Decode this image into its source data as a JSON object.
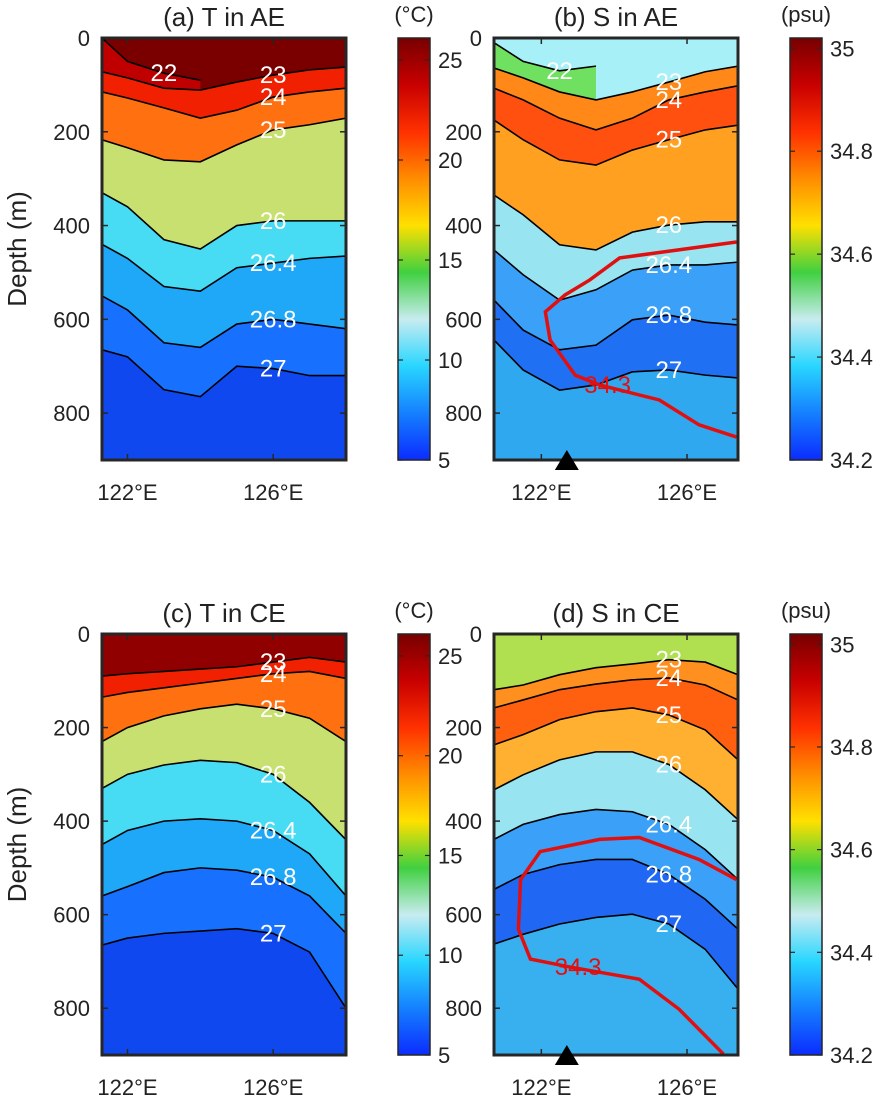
{
  "chart_data": [
    {
      "type": "contour",
      "title": "(a) T in AE",
      "ylabel": "Depth (m)",
      "xlim": [
        121.3,
        128
      ],
      "xticks": [
        {
          "value": 122,
          "label": "122°E"
        },
        {
          "value": 126,
          "label": "126°E"
        }
      ],
      "ylim": [
        0,
        900
      ],
      "yreverse": true,
      "yticks": [
        0,
        200,
        400,
        600,
        800
      ],
      "colorbar": {
        "label": "(°C)",
        "lim": [
          5,
          26.1
        ],
        "ticks": [
          5,
          10,
          15,
          20,
          25
        ],
        "colormap": [
          "#0b2cff",
          "#1580ff",
          "#28d6ff",
          "#c8ecf0",
          "#40d040",
          "#ffe000",
          "#ff8c00",
          "#ff3000",
          "#c80000",
          "#780000"
        ]
      },
      "top_fill": "#7a0000",
      "series": [
        {
          "name": "22",
          "color": "#000000",
          "fill": "#c00000",
          "x": [
            121.3,
            122,
            123,
            124
          ],
          "values": [
            0,
            50,
            75,
            90
          ]
        },
        {
          "name": "23",
          "color": "#000000",
          "fill": "#f02000",
          "x": [
            121.3,
            122,
            123,
            124,
            125,
            126,
            127,
            128
          ],
          "values": [
            72,
            85,
            107,
            111,
            94,
            79,
            68,
            62
          ]
        },
        {
          "name": "24",
          "color": "#000000",
          "fill": "#ff7010",
          "x": [
            121.3,
            122,
            123,
            124,
            125,
            126,
            127,
            128
          ],
          "values": [
            115,
            128,
            149,
            171,
            154,
            126,
            115,
            107
          ]
        },
        {
          "name": "25",
          "color": "#000000",
          "fill": "#c8e070",
          "x": [
            121.3,
            122,
            123,
            124,
            125,
            126,
            127,
            128
          ],
          "values": [
            217,
            234,
            260,
            264,
            228,
            196,
            185,
            171
          ]
        },
        {
          "name": "26",
          "color": "#000000",
          "fill": "#48dcf4",
          "x": [
            121.3,
            122,
            123,
            124,
            125,
            126,
            127,
            128
          ],
          "values": [
            330,
            360,
            430,
            450,
            400,
            390,
            390,
            390
          ]
        },
        {
          "name": "26.4",
          "color": "#000000",
          "fill": "#20a8f8",
          "x": [
            121.3,
            122,
            123,
            124,
            125,
            126,
            127,
            128
          ],
          "values": [
            440,
            470,
            530,
            540,
            490,
            480,
            470,
            465
          ]
        },
        {
          "name": "26.8",
          "color": "#000000",
          "fill": "#1870ff",
          "x": [
            121.3,
            122,
            123,
            124,
            125,
            126,
            127,
            128
          ],
          "values": [
            550,
            580,
            650,
            660,
            610,
            600,
            610,
            620
          ]
        },
        {
          "name": "27",
          "color": "#000000",
          "fill": "#1048f0",
          "x": [
            121.3,
            122,
            123,
            124,
            125,
            126,
            127,
            128
          ],
          "values": [
            665,
            680,
            750,
            765,
            700,
            705,
            720,
            720
          ]
        }
      ]
    },
    {
      "type": "contour",
      "title": "(b) S in AE",
      "xlim": [
        120.7,
        127.4
      ],
      "xticks": [
        {
          "value": 122,
          "label": "122°E"
        },
        {
          "value": 126,
          "label": "126°E"
        }
      ],
      "ylim": [
        0,
        900
      ],
      "yreverse": true,
      "yticks": [
        0,
        200,
        400,
        600,
        800
      ],
      "colorbar": {
        "label": "(psu)",
        "lim": [
          34.2,
          35.02
        ],
        "ticks": [
          34.2,
          34.4,
          34.6,
          34.8,
          35
        ],
        "colormap": [
          "#0b2cff",
          "#1580ff",
          "#28d6ff",
          "#c8ecf0",
          "#40d040",
          "#ffe000",
          "#ff8c00",
          "#ff3000",
          "#c80000",
          "#780000"
        ]
      },
      "top_fill": "#a8f0f8",
      "marker_x": 122.7,
      "series": [
        {
          "name": "22",
          "color": "#000000",
          "fill": "#70e060",
          "x": [
            120.7,
            121.5,
            122.5,
            123.5
          ],
          "values": [
            10,
            50,
            70,
            60
          ]
        },
        {
          "name": "23",
          "color": "#000000",
          "fill": "#ff8818",
          "x": [
            120.7,
            121.5,
            122.5,
            123.5,
            124.5,
            125.5,
            126.5,
            127.4
          ],
          "values": [
            64,
            85,
            115,
            132,
            115,
            94,
            72,
            60
          ]
        },
        {
          "name": "24",
          "color": "#000000",
          "fill": "#ff5010",
          "x": [
            120.7,
            121.5,
            122.5,
            123.5,
            124.5,
            125.5,
            126.5,
            127.4
          ],
          "values": [
            107,
            132,
            171,
            196,
            171,
            132,
            115,
            102
          ]
        },
        {
          "name": "25",
          "color": "#000000",
          "fill": "#ffa020",
          "x": [
            120.7,
            121.5,
            122.5,
            123.5,
            124.5,
            125.5,
            126.5,
            127.4
          ],
          "values": [
            175,
            217,
            260,
            271,
            239,
            217,
            196,
            186
          ]
        },
        {
          "name": "26",
          "color": "#000000",
          "fill": "#98e4f0",
          "x": [
            120.7,
            121.5,
            122.5,
            123.5,
            124.5,
            125.5,
            126.5,
            127.4
          ],
          "values": [
            335,
            377,
            441,
            452,
            414,
            399,
            392,
            392
          ]
        },
        {
          "name": "26.4",
          "color": "#000000",
          "fill": "#3aa0f8",
          "x": [
            120.7,
            121.5,
            122.5,
            123.5,
            124.5,
            125.5,
            126.5,
            127.4
          ],
          "values": [
            452,
            505,
            559,
            537,
            495,
            484,
            484,
            478
          ]
        },
        {
          "name": "26.8",
          "color": "#000000",
          "fill": "#2070f4",
          "x": [
            120.7,
            121.5,
            122.5,
            123.5,
            124.5,
            125.5,
            126.5,
            127.4
          ],
          "values": [
            559,
            623,
            665,
            655,
            601,
            591,
            606,
            612
          ]
        },
        {
          "name": "27",
          "color": "#000000",
          "fill": "#30a8f0",
          "x": [
            120.7,
            121.5,
            122.5,
            123.5,
            124.5,
            125.5,
            126.5,
            127.4
          ],
          "values": [
            644,
            708,
            751,
            740,
            712,
            708,
            719,
            725
          ]
        },
        {
          "name": "34.3",
          "color": "#e01010",
          "x": [
            127.36,
            124.15,
            123.33,
            122.65,
            122.11,
            122.24,
            122.93,
            123.6,
            125.24,
            126.33,
            127.36
          ],
          "values": [
            435,
            469,
            516,
            548,
            584,
            644,
            719,
            740,
            772,
            825,
            851
          ]
        }
      ]
    },
    {
      "type": "contour",
      "title": "(c) T in CE",
      "ylabel": "Depth (m)",
      "xlim": [
        121.3,
        128
      ],
      "xticks": [
        {
          "value": 122,
          "label": "122°E"
        },
        {
          "value": 126,
          "label": "126°E"
        }
      ],
      "ylim": [
        0,
        900
      ],
      "yreverse": true,
      "yticks": [
        0,
        200,
        400,
        600,
        800
      ],
      "colorbar": {
        "label": "(°C)",
        "lim": [
          5,
          26.1
        ],
        "ticks": [
          5,
          10,
          15,
          20,
          25
        ],
        "colormap": [
          "#0b2cff",
          "#1580ff",
          "#28d6ff",
          "#c8ecf0",
          "#40d040",
          "#ffe000",
          "#ff8c00",
          "#ff3000",
          "#c80000",
          "#780000"
        ]
      },
      "top_fill": "#900000",
      "series": [
        {
          "name": "23",
          "color": "#000000",
          "fill": "#f02000",
          "x": [
            121.3,
            122,
            123,
            124,
            125,
            126,
            127,
            128
          ],
          "values": [
            90,
            85,
            80,
            75,
            70,
            60,
            50,
            60
          ]
        },
        {
          "name": "24",
          "color": "#000000",
          "fill": "#ff7010",
          "x": [
            121.3,
            122,
            123,
            124,
            125,
            126,
            127,
            128
          ],
          "values": [
            135,
            125,
            115,
            105,
            95,
            85,
            80,
            95
          ]
        },
        {
          "name": "25",
          "color": "#000000",
          "fill": "#c8e070",
          "x": [
            121.3,
            122,
            123,
            124,
            125,
            126,
            127,
            128
          ],
          "values": [
            230,
            200,
            175,
            160,
            150,
            160,
            180,
            230
          ]
        },
        {
          "name": "26",
          "color": "#000000",
          "fill": "#48dcf4",
          "x": [
            121.3,
            122,
            123,
            124,
            125,
            126,
            127,
            128
          ],
          "values": [
            330,
            300,
            280,
            270,
            275,
            300,
            360,
            440
          ]
        },
        {
          "name": "26.4",
          "color": "#000000",
          "fill": "#20a8f8",
          "x": [
            121.3,
            122,
            123,
            124,
            125,
            126,
            127,
            128
          ],
          "values": [
            450,
            420,
            400,
            395,
            400,
            420,
            470,
            560
          ]
        },
        {
          "name": "26.8",
          "color": "#000000",
          "fill": "#1870ff",
          "x": [
            121.3,
            122,
            123,
            124,
            125,
            126,
            127,
            128
          ],
          "values": [
            560,
            540,
            510,
            500,
            505,
            520,
            560,
            640
          ]
        },
        {
          "name": "27",
          "color": "#000000",
          "fill": "#1048f0",
          "x": [
            121.3,
            122,
            123,
            124,
            125,
            126,
            127,
            128
          ],
          "values": [
            665,
            650,
            640,
            635,
            630,
            640,
            680,
            800
          ]
        }
      ]
    },
    {
      "type": "contour",
      "title": "(d) S in CE",
      "xlim": [
        120.7,
        127.4
      ],
      "xticks": [
        {
          "value": 122,
          "label": "122°E"
        },
        {
          "value": 126,
          "label": "126°E"
        }
      ],
      "ylim": [
        0,
        900
      ],
      "yreverse": true,
      "yticks": [
        0,
        200,
        400,
        600,
        800
      ],
      "colorbar": {
        "label": "(psu)",
        "lim": [
          34.2,
          35.02
        ],
        "ticks": [
          34.2,
          34.4,
          34.6,
          34.8,
          35
        ],
        "colormap": [
          "#0b2cff",
          "#1580ff",
          "#28d6ff",
          "#c8ecf0",
          "#40d040",
          "#ffe000",
          "#ff8c00",
          "#ff3000",
          "#c80000",
          "#780000"
        ]
      },
      "top_fill": "#b0e050",
      "marker_x": 122.7,
      "series": [
        {
          "name": "23",
          "color": "#000000",
          "fill": "#ff9020",
          "x": [
            120.7,
            121.5,
            122.5,
            123.5,
            124.5,
            125.5,
            126.5,
            127.4
          ],
          "values": [
            119,
            109,
            87,
            72,
            64,
            55,
            60,
            87
          ]
        },
        {
          "name": "24",
          "color": "#000000",
          "fill": "#ff6010",
          "x": [
            120.7,
            121.5,
            122.5,
            123.5,
            124.5,
            125.5,
            126.5,
            127.4
          ],
          "values": [
            158,
            141,
            119,
            107,
            98,
            94,
            109,
            141
          ]
        },
        {
          "name": "25",
          "color": "#000000",
          "fill": "#ffb030",
          "x": [
            120.7,
            121.5,
            122.5,
            123.5,
            124.5,
            125.5,
            126.5,
            127.4
          ],
          "values": [
            237,
            215,
            183,
            166,
            158,
            173,
            205,
            269
          ]
        },
        {
          "name": "26",
          "color": "#000000",
          "fill": "#98e4f0",
          "x": [
            120.7,
            121.5,
            122.5,
            123.5,
            124.5,
            125.5,
            126.5,
            127.4
          ],
          "values": [
            333,
            301,
            269,
            252,
            252,
            279,
            333,
            397
          ]
        },
        {
          "name": "26.4",
          "color": "#000000",
          "fill": "#3aa0f8",
          "x": [
            120.7,
            121.5,
            122.5,
            123.5,
            124.5,
            125.5,
            126.5,
            127.4
          ],
          "values": [
            439,
            407,
            386,
            375,
            380,
            407,
            461,
            525
          ]
        },
        {
          "name": "26.8",
          "color": "#000000",
          "fill": "#2068f4",
          "x": [
            120.7,
            121.5,
            122.5,
            123.5,
            124.5,
            125.5,
            126.5,
            127.4
          ],
          "values": [
            546,
            514,
            493,
            482,
            482,
            514,
            567,
            631
          ]
        },
        {
          "name": "27",
          "color": "#000000",
          "fill": "#38b0f0",
          "x": [
            120.7,
            121.5,
            122.5,
            123.5,
            124.5,
            125.5,
            126.5,
            127.4
          ],
          "values": [
            663,
            642,
            620,
            606,
            599,
            620,
            674,
            759
          ]
        },
        {
          "name": "34.3",
          "color": "#e01010",
          "x": [
            127.36,
            126.33,
            124.69,
            123.6,
            121.97,
            121.43,
            121.37,
            121.7,
            122.79,
            124.69,
            125.78,
            127.0
          ],
          "values": [
            525,
            482,
            435,
            439,
            465,
            525,
            631,
            695,
            712,
            738,
            802,
            898
          ]
        }
      ]
    }
  ]
}
